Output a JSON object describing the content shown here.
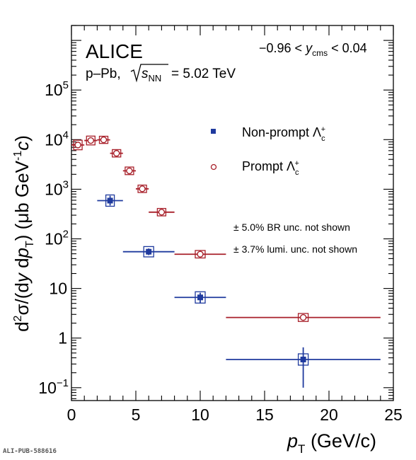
{
  "chart_data": {
    "type": "scatter",
    "experiment": "ALICE",
    "system": {
      "collision": "p–Pb,",
      "energy_value": "= 5.02 TeV"
    },
    "rapidity": {
      "prefix": "−0.96 <",
      "suffix": "< 0.04"
    },
    "notes": [
      "± 5.0% BR unc. not shown",
      "± 3.7% lumi. unc. not shown"
    ],
    "xlabel_unit": "(GeV/c)",
    "ylabel": "d²σ/(dy dpT) (μb GeV⁻¹c)",
    "footer": "ALI-PUB-588616",
    "xlim": [
      0,
      25
    ],
    "ylim": [
      0.055,
      2000000
    ],
    "yscale": "log",
    "x_ticks": [
      0,
      5,
      10,
      15,
      20,
      25
    ],
    "legend_position": "upper-right",
    "series": [
      {
        "name": "Non-prompt Λc+",
        "color": "#1f3a9e",
        "marker": "filled-square",
        "points": [
          {
            "x": 3,
            "xlow": 2,
            "xhigh": 4,
            "y": 590,
            "ylow": 470,
            "yhigh": 740
          },
          {
            "x": 6,
            "xlow": 4,
            "xhigh": 8,
            "y": 55,
            "ylow": 47,
            "yhigh": 64
          },
          {
            "x": 10,
            "xlow": 8,
            "xhigh": 12,
            "y": 6.6,
            "ylow": 5.0,
            "yhigh": 8.2
          },
          {
            "x": 18,
            "xlow": 12,
            "xhigh": 24,
            "y": 0.37,
            "ylow": 0.1,
            "yhigh": 0.65
          }
        ]
      },
      {
        "name": "Prompt Λc+",
        "color": "#a8202a",
        "marker": "open-circle",
        "points": [
          {
            "x": 0.5,
            "xlow": 0,
            "xhigh": 1,
            "y": 7800,
            "ylow": 6800,
            "yhigh": 8800
          },
          {
            "x": 1.5,
            "xlow": 1,
            "xhigh": 2,
            "y": 9600,
            "ylow": 8600,
            "yhigh": 10600
          },
          {
            "x": 2.5,
            "xlow": 2,
            "xhigh": 3,
            "y": 9900,
            "ylow": 9400,
            "yhigh": 10400
          },
          {
            "x": 3.5,
            "xlow": 3,
            "xhigh": 4,
            "y": 5300,
            "ylow": 5000,
            "yhigh": 5600
          },
          {
            "x": 4.5,
            "xlow": 4,
            "xhigh": 5,
            "y": 2350,
            "ylow": 2200,
            "yhigh": 2500
          },
          {
            "x": 5.5,
            "xlow": 5,
            "xhigh": 6,
            "y": 1020,
            "ylow": 960,
            "yhigh": 1080
          },
          {
            "x": 7,
            "xlow": 6,
            "xhigh": 8,
            "y": 345,
            "ylow": 325,
            "yhigh": 365
          },
          {
            "x": 10,
            "xlow": 8,
            "xhigh": 12,
            "y": 49,
            "ylow": 46,
            "yhigh": 52
          },
          {
            "x": 18,
            "xlow": 12,
            "xhigh": 24,
            "y": 2.6,
            "ylow": 2.4,
            "yhigh": 2.8
          }
        ]
      }
    ]
  }
}
